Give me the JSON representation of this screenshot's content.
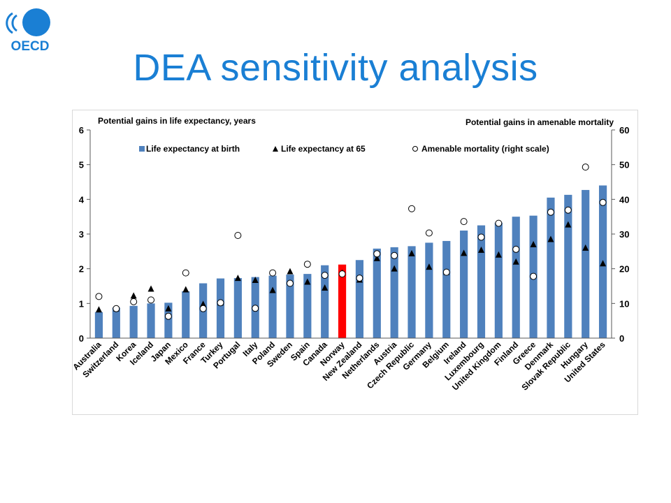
{
  "slide": {
    "title": "DEA sensitivity analysis",
    "logo_text": "OECD",
    "colors": {
      "title": "#1a7fd4",
      "logo": "#1a7fd4",
      "bar": "#4f81bd",
      "highlight": "#ff0000"
    }
  },
  "chart_data": {
    "type": "bar",
    "left_axis_title": "Potential gains in life expectancy, years",
    "right_axis_title": "Potential gains in amenable mortality",
    "y_left": {
      "min": 0,
      "max": 6,
      "ticks": [
        "0",
        "1",
        "2",
        "3",
        "4",
        "5",
        "6"
      ]
    },
    "y_right": {
      "min": 0,
      "max": 60,
      "ticks": [
        "0",
        "10",
        "20",
        "30",
        "40",
        "50",
        "60"
      ]
    },
    "legend": {
      "placement": "top",
      "items": [
        "Life expectancy at birth",
        "Life expectancy at 65",
        "Amenable mortality (right scale)"
      ]
    },
    "highlighted_category": "Norway",
    "categories": [
      "Australia",
      "Switzerland",
      "Korea",
      "Iceland",
      "Japan",
      "Mexico",
      "France",
      "Turkey",
      "Portugal",
      "Italy",
      "Poland",
      "Sweden",
      "Spain",
      "Canada",
      "Norway",
      "New Zealand",
      "Netherlands",
      "Austria",
      "Czech Republic",
      "Germany",
      "Belgium",
      "Ireland",
      "Luxembourg",
      "United Kingdom",
      "Finland",
      "Greece",
      "Denmark",
      "Slovak Republic",
      "Hungary",
      "United States"
    ],
    "series": [
      {
        "name": "Life expectancy at birth",
        "mark": "bar",
        "axis": "left",
        "values": [
          0.75,
          0.88,
          0.93,
          1.0,
          1.02,
          1.35,
          1.58,
          1.72,
          1.73,
          1.76,
          1.8,
          1.83,
          1.85,
          2.1,
          2.12,
          2.25,
          2.58,
          2.62,
          2.65,
          2.75,
          2.8,
          3.1,
          3.25,
          3.33,
          3.5,
          3.53,
          4.05,
          4.13,
          4.27,
          4.4
        ]
      },
      {
        "name": "Life expectancy at 65",
        "mark": "triangle",
        "axis": "left",
        "values": [
          0.82,
          0.85,
          1.22,
          1.42,
          0.85,
          1.4,
          0.98,
          1.02,
          1.73,
          1.67,
          1.38,
          1.92,
          1.62,
          1.45,
          1.88,
          1.68,
          2.3,
          2.0,
          2.44,
          2.05,
          1.9,
          2.45,
          2.54,
          2.4,
          2.2,
          2.7,
          2.85,
          3.27,
          2.6,
          2.15
        ]
      },
      {
        "name": "Amenable mortality (right scale)",
        "mark": "circle",
        "axis": "right",
        "values": [
          12,
          8.5,
          10.5,
          11,
          6.3,
          18.8,
          8.5,
          10.2,
          29.6,
          8.6,
          18.8,
          15.8,
          21.3,
          18.1,
          18.5,
          17.3,
          24.3,
          23.8,
          37.3,
          30.3,
          19.0,
          33.6,
          29.1,
          33.1,
          25.6,
          17.8,
          36.3,
          36.9,
          49.3,
          39.1
        ]
      }
    ]
  }
}
